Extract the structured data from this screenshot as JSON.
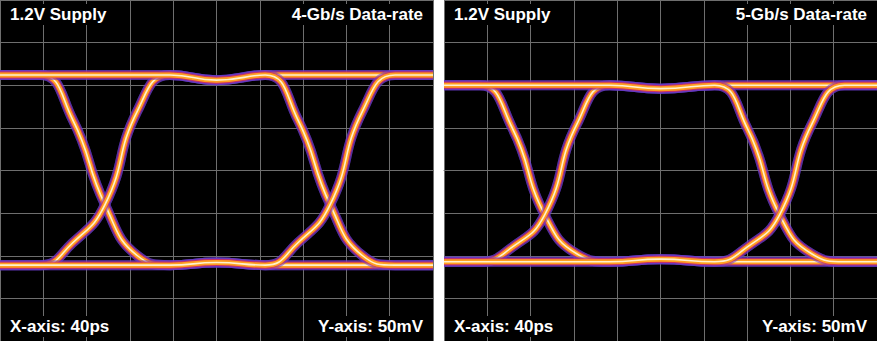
{
  "chart_data": [
    {
      "type": "line",
      "title": "1.2V Supply",
      "subtitle": "4-Gb/s Data-rate",
      "xlabel": "X-axis: 40ps",
      "ylabel": "Y-axis: 50mV",
      "xlim": [
        0,
        400
      ],
      "xticks": [
        0,
        40,
        80,
        120,
        160,
        200,
        240,
        280,
        320,
        360,
        400
      ],
      "ylim": [
        -200,
        200
      ],
      "yticks": [
        -200,
        -150,
        -100,
        -50,
        0,
        50,
        100,
        150,
        200
      ],
      "grid": true,
      "tick_labels": false,
      "color": "#ffa020",
      "x": [
        0,
        37,
        67,
        97,
        127,
        157,
        200,
        245,
        275,
        305,
        335,
        365,
        400
      ],
      "series": [
        {
          "values": [
            112,
            112,
            112,
            112,
            112,
            112,
            106,
            112,
            112,
            112,
            112,
            112,
            112
          ]
        },
        {
          "values": [
            -111,
            -111,
            -111,
            -111,
            -111,
            -111,
            -108,
            -111,
            -111,
            -111,
            -111,
            -111,
            -111
          ]
        },
        {
          "values": [
            112,
            112,
            60,
            -40,
            -100,
            -111,
            -108,
            -111,
            -85,
            -40,
            70,
            112,
            112
          ]
        },
        {
          "values": [
            -111,
            -111,
            -85,
            -40,
            70,
            112,
            106,
            112,
            60,
            -40,
            -100,
            -111,
            -111
          ]
        },
        {
          "values": [
            112,
            112,
            60,
            -40,
            -100,
            -111,
            -108,
            -111,
            -111,
            -111,
            -111,
            -111,
            -111
          ]
        },
        {
          "values": [
            -111,
            -111,
            -85,
            -40,
            70,
            112,
            106,
            112,
            112,
            112,
            112,
            112,
            112
          ]
        },
        {
          "values": [
            112,
            112,
            112,
            112,
            112,
            112,
            106,
            112,
            60,
            -40,
            -100,
            -111,
            -111
          ]
        },
        {
          "values": [
            -111,
            -111,
            -111,
            -111,
            -111,
            -111,
            -108,
            -111,
            -85,
            -40,
            70,
            112,
            112
          ]
        }
      ]
    },
    {
      "type": "line",
      "title": "1.2V Supply",
      "subtitle": "5-Gb/s Data-rate",
      "xlabel": "X-axis: 40ps",
      "ylabel": "Y-axis: 50mV",
      "xlim": [
        0,
        400
      ],
      "xticks": [
        0,
        40,
        80,
        120,
        160,
        200,
        240,
        280,
        320,
        360,
        400
      ],
      "ylim": [
        -200,
        200
      ],
      "yticks": [
        -200,
        -150,
        -100,
        -50,
        0,
        50,
        100,
        150,
        200
      ],
      "grid": true,
      "tick_labels": false,
      "color": "#ffa020",
      "x": [
        0,
        33,
        63,
        93,
        123,
        153,
        200,
        250,
        280,
        310,
        340,
        370,
        400
      ],
      "series": [
        {
          "values": [
            100,
            100,
            100,
            100,
            100,
            100,
            96,
            100,
            100,
            100,
            100,
            100,
            100
          ]
        },
        {
          "values": [
            -107,
            -107,
            -107,
            -107,
            -107,
            -107,
            -104,
            -107,
            -107,
            -107,
            -107,
            -107,
            -107
          ]
        },
        {
          "values": [
            100,
            100,
            50,
            -52,
            -98,
            -107,
            -104,
            -107,
            -90,
            -52,
            55,
            100,
            100
          ]
        },
        {
          "values": [
            -107,
            -107,
            -90,
            -52,
            55,
            100,
            96,
            100,
            50,
            -52,
            -98,
            -107,
            -107
          ]
        },
        {
          "values": [
            100,
            100,
            50,
            -52,
            -98,
            -107,
            -104,
            -107,
            -107,
            -107,
            -107,
            -107,
            -107
          ]
        },
        {
          "values": [
            -107,
            -107,
            -90,
            -52,
            55,
            100,
            96,
            100,
            100,
            100,
            100,
            100,
            100
          ]
        },
        {
          "values": [
            100,
            100,
            100,
            100,
            100,
            100,
            96,
            100,
            50,
            -52,
            -98,
            -107,
            -107
          ]
        },
        {
          "values": [
            -107,
            -107,
            -107,
            -107,
            -107,
            -107,
            -104,
            -107,
            -90,
            -52,
            55,
            100,
            100
          ]
        }
      ]
    }
  ]
}
